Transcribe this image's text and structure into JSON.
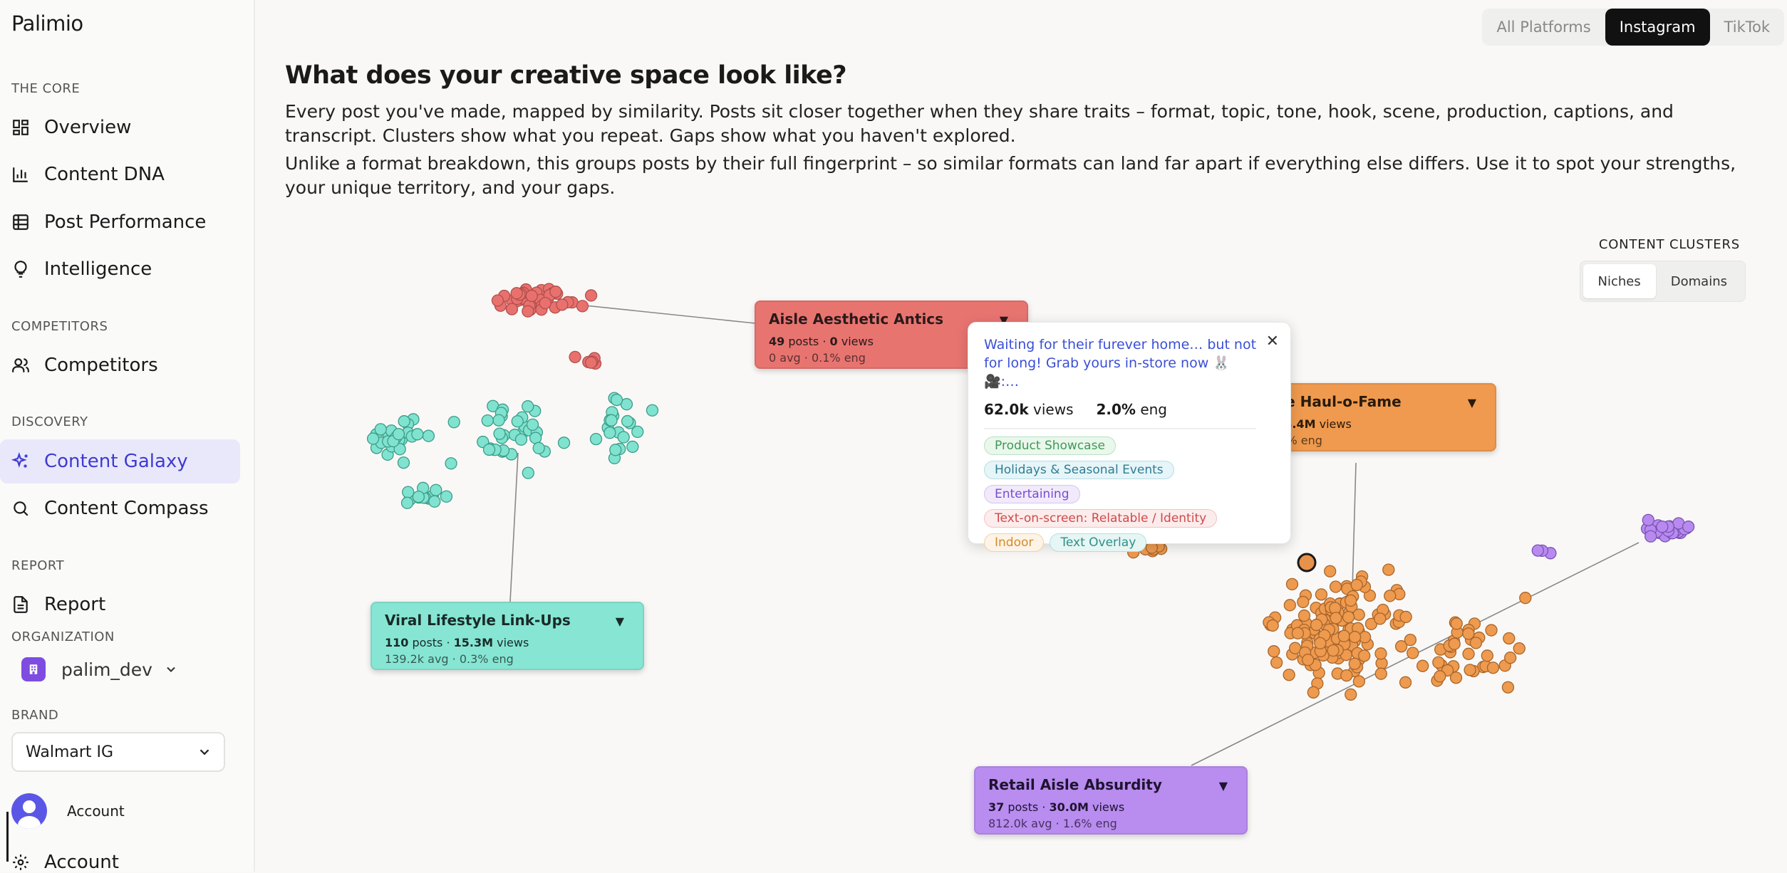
{
  "app": {
    "name": "Palimio"
  },
  "sidebar": {
    "sections": {
      "core": "THE CORE",
      "competitors": "COMPETITORS",
      "discovery": "DISCOVERY",
      "report": "REPORT",
      "organization": "ORGANIZATION",
      "brand": "BRAND"
    },
    "items": {
      "overview": "Overview",
      "content_dna": "Content DNA",
      "post_performance": "Post Performance",
      "intelligence": "Intelligence",
      "competitors": "Competitors",
      "content_galaxy": "Content Galaxy",
      "content_compass": "Content Compass",
      "report": "Report"
    },
    "active_item": "content_galaxy",
    "organization": "palim_dev",
    "brand_select": "Walmart IG",
    "account_label": "Account",
    "account_label_2": "Account"
  },
  "platforms": {
    "options": [
      "All Platforms",
      "Instagram",
      "TikTok"
    ],
    "selected": "Instagram"
  },
  "header": {
    "title": "What does your creative space look like?",
    "desc1": "Every post you've made, mapped by similarity. Posts sit closer together when they share traits – format, topic, tone, hook, scene, production, captions, and transcript. Clusters show what you repeat. Gaps show what you haven't explored.",
    "desc2": "Unlike a format breakdown, this groups posts by their full fingerprint – so similar formats can land far apart if everything else differs. Use it to spot your strengths, your unique territory, and your gaps."
  },
  "clusters_control": {
    "title": "CONTENT CLUSTERS",
    "options": [
      "Niches",
      "Domains"
    ],
    "selected": "Niches"
  },
  "colors": {
    "red": "#e8716e",
    "teal": "#7fe3cf",
    "orange": "#ee9a4f",
    "purple": "#b88af0",
    "accent": "#3f3bd1"
  },
  "clusters": {
    "aisle": {
      "name": "Aisle Aesthetic Antics",
      "posts": "49",
      "views": "0",
      "avg": "0 avg",
      "eng": "0.1% eng"
    },
    "viral": {
      "name": "Viral Lifestyle Link-Ups",
      "posts": "110",
      "views": "15.3M",
      "avg": "139.2k avg",
      "eng": "0.3% eng"
    },
    "haul": {
      "name": "ure Haul-o-Fame",
      "posts": "",
      "views": "318.4M",
      "avg": "",
      "eng": "1.9% eng"
    },
    "retail": {
      "name": "Retail Aisle Absurdity",
      "posts": "37",
      "views": "30.0M",
      "avg": "812.0k avg",
      "eng": "1.6% eng"
    }
  },
  "popup": {
    "caption": "Waiting for their furever home… but not for long! Grab yours in-store now 🐰 🎥:…",
    "views": "62.0k",
    "views_label": "views",
    "eng": "2.0%",
    "eng_label": "eng",
    "tags": [
      {
        "text": "Product Showcase",
        "color": "#3f9a55",
        "bg": "#eaf7ec",
        "border": "#b9e2c2"
      },
      {
        "text": "Holidays & Seasonal Events",
        "color": "#2f7d95",
        "bg": "#e6f5f8",
        "border": "#b6dde6"
      },
      {
        "text": "Entertaining",
        "color": "#7b4bd0",
        "bg": "#f1eafb",
        "border": "#d6c4f1"
      },
      {
        "text": "Text-on-screen: Relatable / Identity",
        "color": "#d04a4a",
        "bg": "#fcecec",
        "border": "#f2c3c3"
      },
      {
        "text": "Indoor",
        "color": "#d68a2b",
        "bg": "#fdf3e6",
        "border": "#f0d3a8"
      },
      {
        "text": "Text Overlay",
        "color": "#2f8f88",
        "bg": "#e6f6f4",
        "border": "#b3e0db"
      }
    ]
  }
}
